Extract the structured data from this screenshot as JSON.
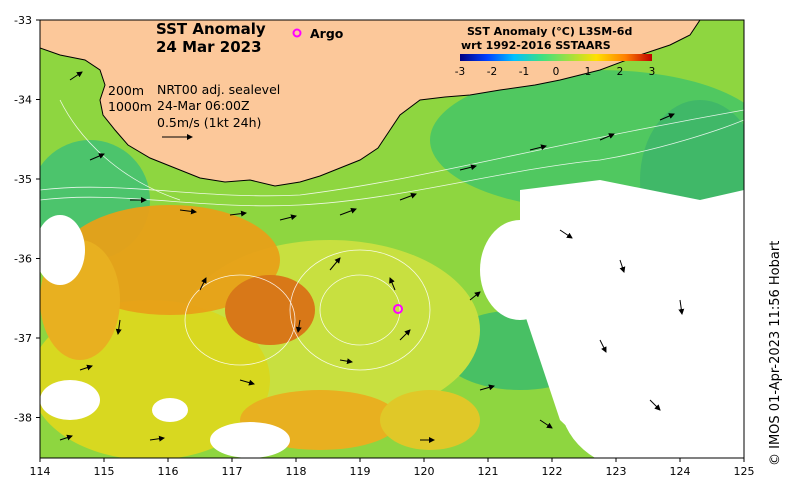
{
  "title": {
    "line1": "SST Anomaly",
    "line2": "24 Mar 2023"
  },
  "argo_label": "Argo",
  "colorbar": {
    "title_line1": "SST Anomaly (°C) L3SM-6d",
    "title_line2": "wrt 1992-2016 SSTAARS",
    "ticks": [
      "-3",
      "-2",
      "-1",
      "0",
      "1",
      "2",
      "3"
    ],
    "colors": [
      "#000080",
      "#0040ff",
      "#00c0ff",
      "#40e080",
      "#a0e040",
      "#ffe000",
      "#ff8000",
      "#c00000"
    ]
  },
  "legend": {
    "contour_200": "200m",
    "contour_1000": "1000m",
    "sealevel": "NRT00 adj. sealevel",
    "time": "24-Mar 06:00Z",
    "scale": "0.5m/s (1kt 24h)"
  },
  "axes": {
    "lon_ticks": [
      "114",
      "115",
      "116",
      "117",
      "118",
      "119",
      "120",
      "121",
      "122",
      "123",
      "124",
      "125"
    ],
    "lat_ticks": [
      "-33",
      "-34",
      "-35",
      "-36",
      "-37",
      "-38"
    ]
  },
  "credit": "© IMOS 01-Apr-2023 11:56 Hobart",
  "colors": {
    "land": "#fcc89a",
    "coast": "#000000",
    "argo": "#ff00ff"
  }
}
